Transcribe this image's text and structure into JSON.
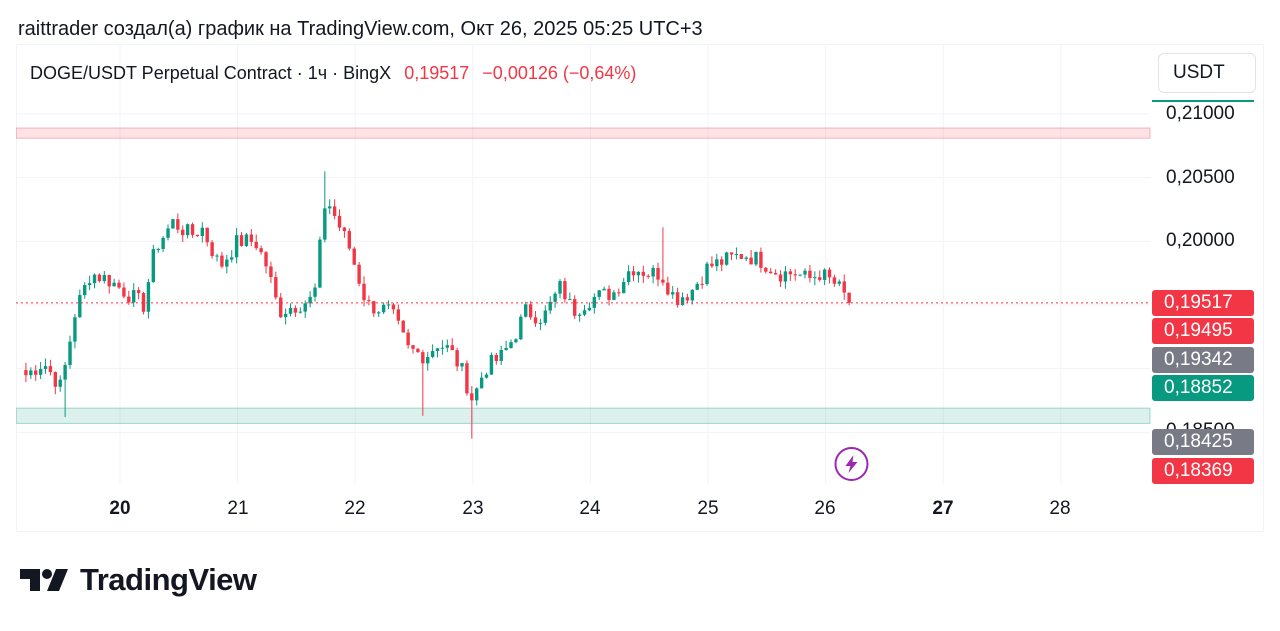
{
  "caption": "raittrader создал(а) график на TradingView.com, Окт 26, 2025 05:25 UTC+3",
  "legend": {
    "symbol": "DOGE/USDT Perpetual Contract · 1ч · BingX",
    "price": "0,19517",
    "change": "−0,00126 (−0,64%)"
  },
  "currency_button": "USDT",
  "price_axis": {
    "ticks": [
      "0,21000",
      "0,20500",
      "0,20000",
      "0,18500"
    ]
  },
  "time_axis": {
    "ticks": [
      "20",
      "21",
      "22",
      "23",
      "24",
      "25",
      "26",
      "27",
      "28"
    ]
  },
  "price_labels": [
    {
      "value": "0,19517",
      "color": "#f23645"
    },
    {
      "value": "0,19495",
      "color": "#f23645"
    },
    {
      "value": "0,19342",
      "color": "#787b86"
    },
    {
      "value": "0,18852",
      "color": "#089981"
    },
    {
      "value": "0,18425",
      "color": "#787b86"
    },
    {
      "value": "0,18369",
      "color": "#f23645"
    }
  ],
  "logo_text": "TradingView",
  "colors": {
    "up": "#089981",
    "down": "#f23645",
    "accent": "#9c27b0"
  },
  "chart_data": {
    "type": "candlestick",
    "interval": "1h",
    "exchange": "BingX",
    "symbol": "DOGE/USDT Perpetual Contract",
    "last_price": 0.19517,
    "ylim": [
      0.1805,
      0.2125
    ],
    "xlim": [
      19.15,
      28.75
    ],
    "grid": true,
    "zones": [
      {
        "kind": "resistance",
        "from": 0.2081,
        "to": 0.2089,
        "color": "#f23645"
      },
      {
        "kind": "support",
        "from": 0.1857,
        "to": 0.1869,
        "color": "#089981"
      }
    ],
    "anchors": [
      {
        "day": 19.2,
        "price": 0.1895
      },
      {
        "day": 19.35,
        "price": 0.1905
      },
      {
        "day": 19.5,
        "price": 0.1885
      },
      {
        "day": 19.62,
        "price": 0.1945
      },
      {
        "day": 19.75,
        "price": 0.1975
      },
      {
        "day": 19.9,
        "price": 0.197
      },
      {
        "day": 20.05,
        "price": 0.196
      },
      {
        "day": 20.2,
        "price": 0.195
      },
      {
        "day": 20.3,
        "price": 0.1995
      },
      {
        "day": 20.45,
        "price": 0.2015
      },
      {
        "day": 20.6,
        "price": 0.2005
      },
      {
        "day": 20.7,
        "price": 0.201
      },
      {
        "day": 20.85,
        "price": 0.198
      },
      {
        "day": 21.0,
        "price": 0.2
      },
      {
        "day": 21.15,
        "price": 0.2
      },
      {
        "day": 21.25,
        "price": 0.198
      },
      {
        "day": 21.35,
        "price": 0.1945
      },
      {
        "day": 21.5,
        "price": 0.195
      },
      {
        "day": 21.65,
        "price": 0.1955
      },
      {
        "day": 21.75,
        "price": 0.2035
      },
      {
        "day": 21.85,
        "price": 0.2015
      },
      {
        "day": 21.95,
        "price": 0.1995
      },
      {
        "day": 22.1,
        "price": 0.195
      },
      {
        "day": 22.3,
        "price": 0.1945
      },
      {
        "day": 22.45,
        "price": 0.1915
      },
      {
        "day": 22.6,
        "price": 0.191
      },
      {
        "day": 22.7,
        "price": 0.192
      },
      {
        "day": 22.8,
        "price": 0.1915
      },
      {
        "day": 22.9,
        "price": 0.19
      },
      {
        "day": 23.0,
        "price": 0.1875
      },
      {
        "day": 23.1,
        "price": 0.19
      },
      {
        "day": 23.25,
        "price": 0.191
      },
      {
        "day": 23.35,
        "price": 0.1925
      },
      {
        "day": 23.45,
        "price": 0.1945
      },
      {
        "day": 23.6,
        "price": 0.194
      },
      {
        "day": 23.75,
        "price": 0.1965
      },
      {
        "day": 23.85,
        "price": 0.1945
      },
      {
        "day": 24.0,
        "price": 0.1955
      },
      {
        "day": 24.2,
        "price": 0.196
      },
      {
        "day": 24.35,
        "price": 0.198
      },
      {
        "day": 24.5,
        "price": 0.1975
      },
      {
        "day": 24.6,
        "price": 0.1975
      },
      {
        "day": 24.72,
        "price": 0.1955
      },
      {
        "day": 24.85,
        "price": 0.196
      },
      {
        "day": 25.0,
        "price": 0.198
      },
      {
        "day": 25.15,
        "price": 0.1985
      },
      {
        "day": 25.3,
        "price": 0.199
      },
      {
        "day": 25.45,
        "price": 0.1985
      },
      {
        "day": 25.6,
        "price": 0.1975
      },
      {
        "day": 25.75,
        "price": 0.1975
      },
      {
        "day": 25.85,
        "price": 0.197
      },
      {
        "day": 25.95,
        "price": 0.1975
      },
      {
        "day": 26.1,
        "price": 0.1965
      },
      {
        "day": 26.2,
        "price": 0.19517
      }
    ],
    "extremes": [
      {
        "day": 21.76,
        "high": 0.2055
      },
      {
        "day": 24.63,
        "high": 0.2011
      },
      {
        "day": 23.0,
        "low": 0.1845
      },
      {
        "day": 22.58,
        "low": 0.1863
      },
      {
        "day": 19.55,
        "low": 0.1862
      }
    ]
  }
}
